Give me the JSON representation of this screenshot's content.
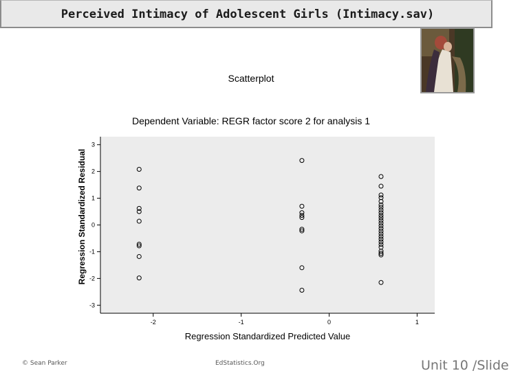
{
  "header": {
    "title": "Perceived Intimacy of Adolescent Girls (Intimacy.sav)"
  },
  "footer": {
    "copyright": "© Sean Parker",
    "site": "EdStatistics.Org",
    "unit": "Unit 10 /Slide"
  },
  "chart_data": {
    "type": "scatter",
    "title": "Scatterplot",
    "subtitle": "Dependent Variable: REGR factor score   2 for analysis 1",
    "xlabel": "Regression Standardized Predicted Value",
    "ylabel": "Regression Standardized Residual",
    "xlim": [
      -2.6,
      1.2
    ],
    "ylim": [
      -3.3,
      3.3
    ],
    "xticks": [
      -2,
      -1,
      0,
      1
    ],
    "yticks": [
      -3,
      -2,
      -1,
      0,
      1,
      2,
      3
    ],
    "grid": false,
    "background": "#ececec",
    "marker_color": "#000000",
    "series": [
      {
        "points": [
          [
            -2.16,
            2.08
          ],
          [
            -2.16,
            1.38
          ],
          [
            -2.16,
            0.62
          ],
          [
            -2.16,
            0.5
          ],
          [
            -2.16,
            0.14
          ],
          [
            -2.16,
            -0.72
          ],
          [
            -2.16,
            -0.78
          ],
          [
            -2.16,
            -1.18
          ],
          [
            -2.16,
            -1.98
          ],
          [
            -0.31,
            2.41
          ],
          [
            -0.31,
            0.7
          ],
          [
            -0.31,
            0.46
          ],
          [
            -0.31,
            0.36
          ],
          [
            -0.31,
            0.28
          ],
          [
            -0.31,
            -0.16
          ],
          [
            -0.31,
            -0.22
          ],
          [
            -0.31,
            -1.6
          ],
          [
            -0.31,
            -2.44
          ],
          [
            0.59,
            1.81
          ],
          [
            0.59,
            1.45
          ],
          [
            0.59,
            1.12
          ],
          [
            0.59,
            1.02
          ],
          [
            0.59,
            0.88
          ],
          [
            0.59,
            0.75
          ],
          [
            0.59,
            0.66
          ],
          [
            0.59,
            0.56
          ],
          [
            0.59,
            0.46
          ],
          [
            0.59,
            0.36
          ],
          [
            0.59,
            0.27
          ],
          [
            0.59,
            0.17
          ],
          [
            0.59,
            0.07
          ],
          [
            0.59,
            -0.03
          ],
          [
            0.59,
            -0.13
          ],
          [
            0.59,
            -0.23
          ],
          [
            0.59,
            -0.33
          ],
          [
            0.59,
            -0.43
          ],
          [
            0.59,
            -0.53
          ],
          [
            0.59,
            -0.63
          ],
          [
            0.59,
            -0.73
          ],
          [
            0.59,
            -0.83
          ],
          [
            0.59,
            -0.98
          ],
          [
            0.59,
            -1.06
          ],
          [
            0.59,
            -1.12
          ],
          [
            0.59,
            -2.15
          ]
        ]
      }
    ]
  }
}
